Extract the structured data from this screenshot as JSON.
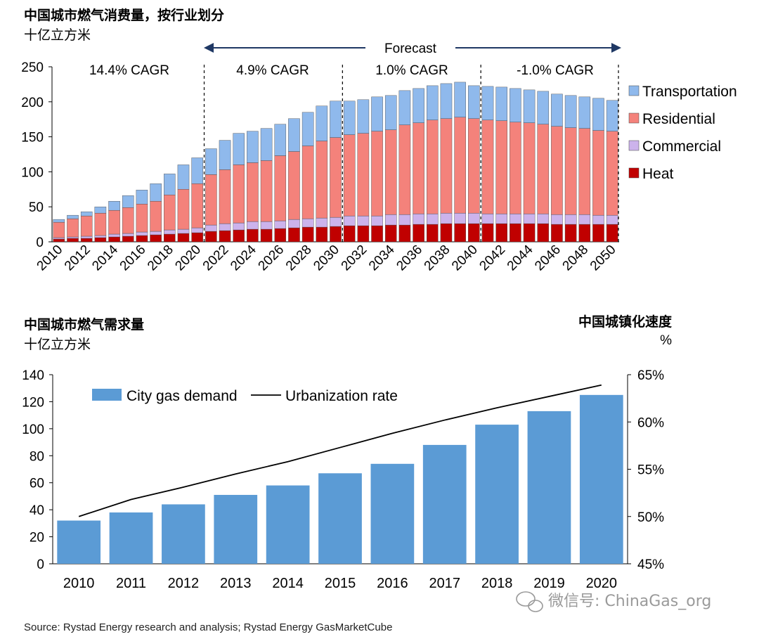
{
  "chart_data": [
    {
      "type": "bar",
      "stacked": true,
      "title": "中国城市燃气消费量，按行业划分",
      "unit_label": "十亿立方米",
      "forecast_label": "Forecast",
      "period_labels": [
        "14.4% CAGR",
        "4.9% CAGR",
        "1.0% CAGR",
        "-1.0% CAGR"
      ],
      "x_tick_labels": [
        "2010",
        "2012",
        "2014",
        "2016",
        "2018",
        "2020",
        "2022",
        "2024",
        "2026",
        "2028",
        "2030",
        "2032",
        "2034",
        "2036",
        "2038",
        "2040",
        "2042",
        "2044",
        "2046",
        "2048",
        "2050"
      ],
      "y_ticks": [
        "0",
        "50",
        "100",
        "150",
        "200",
        "250"
      ],
      "ylim": [
        0,
        250
      ],
      "categories": [
        "2010",
        "2011",
        "2012",
        "2013",
        "2014",
        "2015",
        "2016",
        "2017",
        "2018",
        "2019",
        "2020",
        "2021",
        "2022",
        "2023",
        "2024",
        "2025",
        "2026",
        "2027",
        "2028",
        "2029",
        "2030",
        "2031",
        "2032",
        "2033",
        "2034",
        "2035",
        "2036",
        "2037",
        "2038",
        "2039",
        "2040",
        "2041",
        "2042",
        "2043",
        "2044",
        "2045",
        "2046",
        "2047",
        "2048",
        "2049",
        "2050"
      ],
      "series": [
        {
          "name": "Heat",
          "color": "#c00000",
          "values": [
            4,
            5,
            5,
            6,
            7,
            8,
            9,
            10,
            11,
            12,
            13,
            15,
            16,
            17,
            18,
            18,
            19,
            20,
            21,
            21,
            22,
            23,
            23,
            23,
            24,
            24,
            25,
            25,
            26,
            26,
            26,
            26,
            26,
            26,
            26,
            26,
            25,
            25,
            25,
            25,
            25
          ]
        },
        {
          "name": "Commercial",
          "color": "#ccb3ec",
          "values": [
            2,
            2,
            3,
            3,
            4,
            4,
            5,
            5,
            6,
            6,
            7,
            9,
            10,
            10,
            11,
            11,
            11,
            12,
            12,
            13,
            13,
            14,
            14,
            14,
            15,
            15,
            15,
            15,
            15,
            15,
            15,
            14,
            14,
            14,
            14,
            14,
            14,
            14,
            14,
            13,
            13
          ]
        },
        {
          "name": "Residential",
          "color": "#f4827b",
          "values": [
            22,
            26,
            29,
            32,
            34,
            37,
            40,
            43,
            50,
            57,
            63,
            72,
            77,
            83,
            84,
            87,
            93,
            97,
            104,
            110,
            114,
            116,
            118,
            121,
            121,
            128,
            130,
            134,
            135,
            137,
            135,
            134,
            133,
            131,
            130,
            128,
            126,
            124,
            123,
            121,
            120
          ]
        },
        {
          "name": "Transportation",
          "color": "#8fb9ec",
          "values": [
            4,
            5,
            6,
            9,
            13,
            17,
            20,
            25,
            30,
            35,
            37,
            37,
            42,
            45,
            45,
            46,
            45,
            47,
            48,
            50,
            52,
            48,
            48,
            49,
            49,
            49,
            49,
            49,
            50,
            50,
            47,
            48,
            48,
            48,
            47,
            47,
            46,
            46,
            45,
            46,
            44
          ]
        }
      ]
    },
    {
      "type": "bar",
      "title": "中国城市燃气需求量",
      "unit_label": "十亿立方米",
      "right_title": "中国城镇化速度",
      "right_unit": "%",
      "categories": [
        "2010",
        "2011",
        "2012",
        "2013",
        "2014",
        "2015",
        "2016",
        "2017",
        "2018",
        "2019",
        "2020"
      ],
      "y_ticks": [
        "0",
        "20",
        "40",
        "60",
        "80",
        "100",
        "120",
        "140"
      ],
      "ylim": [
        0,
        140
      ],
      "y2_ticks": [
        "45%",
        "50%",
        "55%",
        "60%",
        "65%"
      ],
      "y2lim": [
        45,
        65
      ],
      "series": [
        {
          "name": "City gas demand",
          "type": "bar",
          "color": "#5b9bd5",
          "values": [
            32,
            38,
            44,
            51,
            58,
            67,
            74,
            88,
            103,
            113,
            125
          ]
        },
        {
          "name": "Urbanization rate",
          "type": "line",
          "axis": "right",
          "color": "#000000",
          "values": [
            50.0,
            51.8,
            53.1,
            54.5,
            55.8,
            57.3,
            58.8,
            60.2,
            61.5,
            62.7,
            63.9
          ]
        }
      ]
    }
  ],
  "watermark": "微信号: ChinaGas_org",
  "source": "Source: Rystad Energy research and analysis; Rystad Energy GasMarketCube"
}
